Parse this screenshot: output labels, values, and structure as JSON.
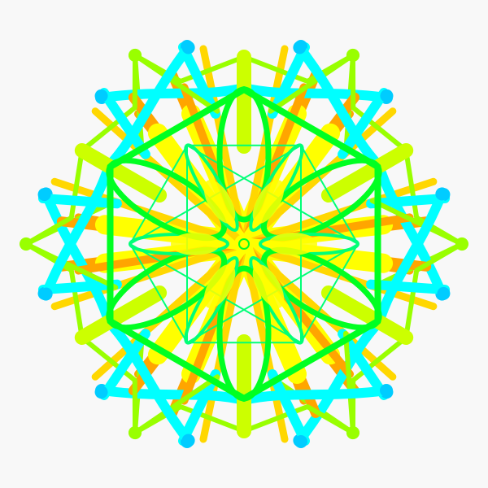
{
  "artwork": {
    "kind": "six-fold symmetric mandala",
    "symmetry": 6,
    "background": "#f8f8f8",
    "palette": {
      "lime": "#99ff00",
      "yellow": "#ffff00",
      "chartreuse": "#ccff00",
      "orange": "#ffa500",
      "gold": "#ffd700",
      "cyan": "#00ffff",
      "sky": "#00ccff",
      "green": "#00ff22",
      "spring": "#00ff77"
    }
  }
}
